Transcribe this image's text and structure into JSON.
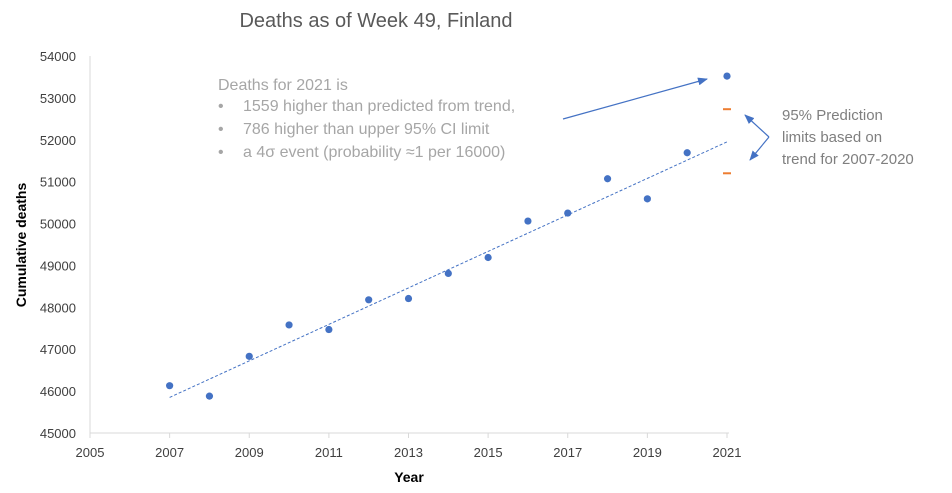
{
  "chart_data": {
    "type": "scatter",
    "title": "Deaths as of Week 49, Finland",
    "xlabel": "Year",
    "ylabel": "Cumulative deaths",
    "xlim": [
      2005,
      2021
    ],
    "ylim": [
      45000,
      54000
    ],
    "x_ticks": [
      2005,
      2007,
      2009,
      2011,
      2013,
      2015,
      2017,
      2019,
      2021
    ],
    "y_ticks": [
      45000,
      46000,
      47000,
      48000,
      49000,
      50000,
      51000,
      52000,
      53000,
      54000
    ],
    "grid": false,
    "series": [
      {
        "points": [
          {
            "x": 2007,
            "y": 46130
          },
          {
            "x": 2008,
            "y": 45880
          },
          {
            "x": 2009,
            "y": 46830
          },
          {
            "x": 2010,
            "y": 47580
          },
          {
            "x": 2011,
            "y": 47470
          },
          {
            "x": 2012,
            "y": 48180
          },
          {
            "x": 2013,
            "y": 48210
          },
          {
            "x": 2014,
            "y": 48810
          },
          {
            "x": 2015,
            "y": 49190
          },
          {
            "x": 2016,
            "y": 50060
          },
          {
            "x": 2017,
            "y": 50250
          },
          {
            "x": 2018,
            "y": 51070
          },
          {
            "x": 2019,
            "y": 50590
          },
          {
            "x": 2020,
            "y": 51690
          },
          {
            "x": 2021,
            "y": 53520
          }
        ]
      }
    ],
    "trendline": {
      "x": [
        2007,
        2021
      ],
      "y": [
        45850,
        51950
      ]
    },
    "prediction_limits": {
      "x": 2021,
      "lower": 51200,
      "upper": 52730
    },
    "colors": {
      "points": "#4472c4",
      "trendline": "#4472c4",
      "limits": "#ed7d31",
      "arrow": "#4472c4"
    },
    "annotation": {
      "heading": "Deaths for 2021 is",
      "bullets": [
        "1559 higher than predicted from trend,",
        "786 higher than upper 95% CI limit",
        "a 4σ event (probability ≈1 per 16000)"
      ]
    },
    "side_note": [
      "95% Prediction",
      "limits based on",
      "trend for 2007-2020"
    ]
  }
}
